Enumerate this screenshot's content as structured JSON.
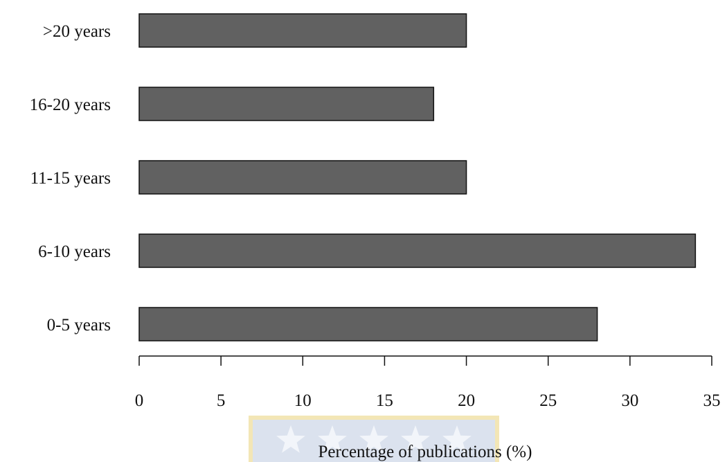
{
  "chart_data": {
    "type": "bar",
    "orientation": "horizontal",
    "categories": [
      "0-5 years",
      "6-10 years",
      "11-15 years",
      "16-20 years",
      ">20 years"
    ],
    "values": [
      28,
      34,
      20,
      18,
      20
    ],
    "xlabel": "Percentage of publications (%)",
    "ylabel": "",
    "xlim": [
      0,
      35
    ],
    "xticks": [
      0,
      5,
      10,
      15,
      20,
      25,
      30,
      35
    ],
    "grid": false,
    "legend": "none"
  },
  "colors": {
    "bar_fill": "#616161",
    "bar_stroke": "#111111",
    "axis": "#111111",
    "text": "#111111",
    "watermark_fill": "#dbe2ee",
    "watermark_border": "#f3e6b6",
    "watermark_star": "#f2f5fa"
  }
}
